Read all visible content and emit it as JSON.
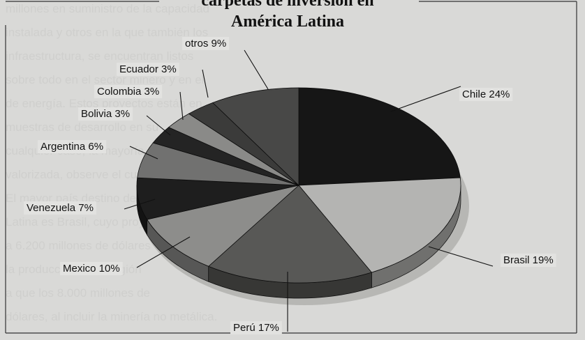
{
  "title_lines": [
    "carpetas de inversión en",
    "América Latina"
  ],
  "chart_data": {
    "type": "pie",
    "title": "carpetas de inversión en América Latina",
    "slices": [
      {
        "label": "Chile 24%",
        "value": 24,
        "color": "#161616"
      },
      {
        "label": "Brasil 19%",
        "value": 19,
        "color": "#b4b4b2"
      },
      {
        "label": "Perú 17%",
        "value": 17,
        "color": "#585856"
      },
      {
        "label": "Mexico 10%",
        "value": 10,
        "color": "#8d8d8b"
      },
      {
        "label": "Venezuela 7%",
        "value": 7,
        "color": "#1e1e1e"
      },
      {
        "label": "Argentina 6%",
        "value": 6,
        "color": "#717170"
      },
      {
        "label": "Bolivia 3%",
        "value": 3,
        "color": "#242424"
      },
      {
        "label": "Colombia 3%",
        "value": 3,
        "color": "#8a8a88"
      },
      {
        "label": "Ecuador 3%",
        "value": 3,
        "color": "#3b3b3a"
      },
      {
        "label": "otros 9%",
        "value": 9,
        "color": "#484847"
      }
    ]
  },
  "background_text": [
    "millones en suministro de la capacidad",
    "instalada y otros en la que también los",
    "infraestructura, se encuentran listos",
    "sobre todo en el sector minero y en el",
    "de energía. Estos proyectos están en",
    "muestras de desarrollo en su",
    "cualquier caso, la mayoría",
    "valorizada, observe el cuadro",
    "El mayor país destino de la",
    "Latina es Brasil, cuyo proyecto",
    "a 6.200 millones de dólares",
    "la producción de la región",
    "a que los 8.000 millones de",
    "dólares, al incluir la minería no metálica."
  ]
}
